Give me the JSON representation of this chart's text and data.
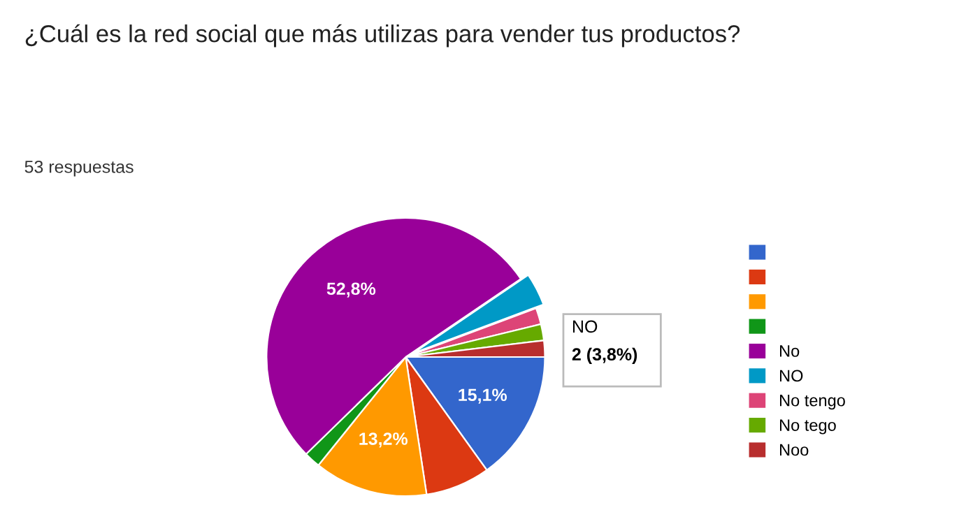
{
  "chart_data": {
    "type": "pie",
    "title": "¿Cuál es la red social que más utilizas para vender tus productos?",
    "subtitle": "53 respuestas",
    "categories": [
      null,
      null,
      null,
      null,
      "No",
      "NO",
      "No tengo",
      "No tego",
      "Noo"
    ],
    "values": [
      15.1,
      7.5,
      13.2,
      1.9,
      52.8,
      3.8,
      1.9,
      1.9,
      1.9
    ],
    "colors": [
      "#3366cc",
      "#dc3912",
      "#ff9900",
      "#109618",
      "#990099",
      "#0099c6",
      "#dd4477",
      "#66aa00",
      "#b82e2e"
    ],
    "value_labels": [
      "15,1%",
      null,
      "13,2%",
      null,
      "52,8%",
      null,
      null,
      null,
      null
    ],
    "annotations": [
      {
        "text": "NO",
        "x": "NO"
      },
      {
        "text": "2 (3,8%)",
        "x": "NO"
      }
    ],
    "legend": "right"
  }
}
